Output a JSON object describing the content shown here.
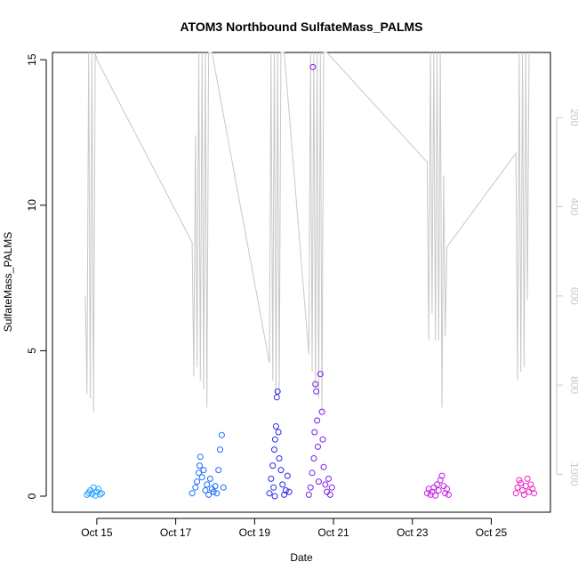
{
  "chart_data": {
    "type": "scatter",
    "title": "ATOM3 Northbound SulfateMass_PALMS",
    "xlabel": "Date",
    "ylabel": "SulfateMass_PALMS",
    "xlim": [
      "2017-10-13T21:00",
      "2017-10-26T12:00"
    ],
    "ylim": [
      -0.55,
      15.25
    ],
    "x_ticks": [
      {
        "date": "2017-10-15",
        "label": "Oct 15"
      },
      {
        "date": "2017-10-17",
        "label": "Oct 17"
      },
      {
        "date": "2017-10-19",
        "label": "Oct 19"
      },
      {
        "date": "2017-10-21",
        "label": "Oct 21"
      },
      {
        "date": "2017-10-23",
        "label": "Oct 23"
      },
      {
        "date": "2017-10-25",
        "label": "Oct 25"
      }
    ],
    "y_ticks": [
      0,
      5,
      10,
      15
    ],
    "y2_ticks": [
      200,
      400,
      600,
      800,
      1000
    ],
    "y2lim": [
      54,
      1085
    ],
    "y2_inverted": true,
    "grid": false,
    "legend": "none",
    "series": [
      {
        "color": "#1ea0ff",
        "points": [
          [
            "2017-10-14T18:00",
            0.05
          ],
          [
            "2017-10-14T19:00",
            0.12
          ],
          [
            "2017-10-14T20:00",
            0.2
          ],
          [
            "2017-10-14T21:00",
            0.08
          ],
          [
            "2017-10-14T22:00",
            0.3
          ],
          [
            "2017-10-14T23:00",
            0.02
          ],
          [
            "2017-10-15T00:00",
            0.15
          ],
          [
            "2017-10-15T01:00",
            0.25
          ],
          [
            "2017-10-15T02:00",
            0.06
          ],
          [
            "2017-10-15T03:00",
            0.1
          ]
        ]
      },
      {
        "color": "#1a6bff",
        "points": [
          [
            "2017-10-17T10:00",
            0.1
          ],
          [
            "2017-10-17T12:00",
            0.3
          ],
          [
            "2017-10-17T13:00",
            0.5
          ],
          [
            "2017-10-17T14:00",
            0.8
          ],
          [
            "2017-10-17T14:30",
            1.05
          ],
          [
            "2017-10-17T15:00",
            1.35
          ],
          [
            "2017-10-17T16:00",
            0.65
          ],
          [
            "2017-10-17T17:00",
            0.9
          ],
          [
            "2017-10-17T18:00",
            0.2
          ],
          [
            "2017-10-17T19:00",
            0.4
          ],
          [
            "2017-10-17T20:00",
            0.05
          ],
          [
            "2017-10-17T21:00",
            0.6
          ],
          [
            "2017-10-17T22:00",
            0.25
          ],
          [
            "2017-10-17T23:00",
            0.15
          ],
          [
            "2017-10-18T00:00",
            0.35
          ],
          [
            "2017-10-18T01:00",
            0.1
          ],
          [
            "2017-10-18T02:00",
            0.9
          ],
          [
            "2017-10-18T03:00",
            1.6
          ],
          [
            "2017-10-18T04:00",
            2.1
          ],
          [
            "2017-10-18T05:00",
            0.3
          ]
        ]
      },
      {
        "color": "#2a28e8",
        "points": [
          [
            "2017-10-19T09:00",
            0.1
          ],
          [
            "2017-10-19T10:00",
            0.6
          ],
          [
            "2017-10-19T11:00",
            1.05
          ],
          [
            "2017-10-19T12:00",
            1.6
          ],
          [
            "2017-10-19T12:30",
            1.95
          ],
          [
            "2017-10-19T13:00",
            2.4
          ],
          [
            "2017-10-19T13:30",
            3.4
          ],
          [
            "2017-10-19T14:00",
            3.6
          ],
          [
            "2017-10-19T14:30",
            2.2
          ],
          [
            "2017-10-19T15:00",
            1.3
          ],
          [
            "2017-10-19T16:00",
            0.9
          ],
          [
            "2017-10-19T17:00",
            0.4
          ],
          [
            "2017-10-19T18:00",
            0.05
          ],
          [
            "2017-10-19T19:00",
            0.2
          ],
          [
            "2017-10-19T20:00",
            0.7
          ],
          [
            "2017-10-19T21:00",
            0.15
          ],
          [
            "2017-10-19T11:30",
            0.3
          ],
          [
            "2017-10-19T12:15",
            0.0
          ]
        ]
      },
      {
        "color": "#7a1ee8",
        "points": [
          [
            "2017-10-20T09:00",
            0.05
          ],
          [
            "2017-10-20T10:00",
            0.3
          ],
          [
            "2017-10-20T11:00",
            0.8
          ],
          [
            "2017-10-20T11:30",
            14.75
          ],
          [
            "2017-10-20T12:00",
            1.3
          ],
          [
            "2017-10-20T12:30",
            2.2
          ],
          [
            "2017-10-20T13:00",
            3.85
          ],
          [
            "2017-10-20T13:30",
            3.6
          ],
          [
            "2017-10-20T14:00",
            2.6
          ],
          [
            "2017-10-20T14:30",
            1.7
          ],
          [
            "2017-10-20T15:00",
            0.5
          ],
          [
            "2017-10-20T16:00",
            4.2
          ],
          [
            "2017-10-20T17:00",
            2.9
          ],
          [
            "2017-10-20T17:30",
            1.95
          ],
          [
            "2017-10-20T18:00",
            1.0
          ],
          [
            "2017-10-20T19:00",
            0.4
          ],
          [
            "2017-10-20T20:00",
            0.15
          ],
          [
            "2017-10-20T21:00",
            0.6
          ],
          [
            "2017-10-20T22:00",
            0.05
          ],
          [
            "2017-10-20T23:00",
            0.3
          ]
        ]
      },
      {
        "color": "#c41ee8",
        "points": [
          [
            "2017-10-23T09:00",
            0.1
          ],
          [
            "2017-10-23T10:00",
            0.25
          ],
          [
            "2017-10-23T11:00",
            0.05
          ],
          [
            "2017-10-23T12:00",
            0.15
          ],
          [
            "2017-10-23T13:00",
            0.3
          ],
          [
            "2017-10-23T14:00",
            0.02
          ],
          [
            "2017-10-23T15:00",
            0.4
          ],
          [
            "2017-10-23T16:00",
            0.2
          ],
          [
            "2017-10-23T17:00",
            0.55
          ],
          [
            "2017-10-23T18:00",
            0.7
          ],
          [
            "2017-10-23T19:00",
            0.35
          ],
          [
            "2017-10-23T20:00",
            0.1
          ],
          [
            "2017-10-23T21:00",
            0.25
          ],
          [
            "2017-10-23T22:00",
            0.05
          ]
        ]
      },
      {
        "color": "#f01ec8",
        "points": [
          [
            "2017-10-25T15:00",
            0.1
          ],
          [
            "2017-10-25T16:00",
            0.3
          ],
          [
            "2017-10-25T17:00",
            0.55
          ],
          [
            "2017-10-25T18:00",
            0.45
          ],
          [
            "2017-10-25T19:00",
            0.2
          ],
          [
            "2017-10-25T20:00",
            0.05
          ],
          [
            "2017-10-25T21:00",
            0.35
          ],
          [
            "2017-10-25T22:00",
            0.6
          ],
          [
            "2017-10-25T23:00",
            0.15
          ],
          [
            "2017-10-26T00:00",
            0.4
          ],
          [
            "2017-10-26T01:00",
            0.25
          ],
          [
            "2017-10-26T02:00",
            0.1
          ]
        ]
      }
    ],
    "secondary_line": {
      "color": "#c8c8c8",
      "axis": "right",
      "points": [
        [
          "2017-10-14T17:00",
          600
        ],
        [
          "2017-10-14T18:00",
          820
        ],
        [
          "2017-10-14T19:00",
          54
        ],
        [
          "2017-10-14T20:00",
          830
        ],
        [
          "2017-10-14T21:00",
          54
        ],
        [
          "2017-10-14T22:00",
          860
        ],
        [
          "2017-10-14T23:00",
          54
        ],
        [
          "2017-10-15T00:00",
          70
        ],
        [
          "2017-10-17T10:00",
          480
        ],
        [
          "2017-10-17T11:00",
          780
        ],
        [
          "2017-10-17T12:00",
          240
        ],
        [
          "2017-10-17T13:00",
          760
        ],
        [
          "2017-10-17T14:00",
          54
        ],
        [
          "2017-10-17T15:00",
          790
        ],
        [
          "2017-10-17T16:00",
          54
        ],
        [
          "2017-10-17T17:00",
          810
        ],
        [
          "2017-10-17T18:00",
          54
        ],
        [
          "2017-10-17T19:00",
          850
        ],
        [
          "2017-10-17T20:00",
          54
        ],
        [
          "2017-10-17T22:00",
          54
        ],
        [
          "2017-10-19T09:00",
          750
        ],
        [
          "2017-10-19T10:00",
          54
        ],
        [
          "2017-10-19T11:00",
          790
        ],
        [
          "2017-10-19T12:00",
          54
        ],
        [
          "2017-10-19T13:00",
          820
        ],
        [
          "2017-10-19T14:00",
          54
        ],
        [
          "2017-10-19T15:00",
          820
        ],
        [
          "2017-10-19T16:00",
          54
        ],
        [
          "2017-10-19T18:00",
          54
        ],
        [
          "2017-10-20T09:00",
          730
        ],
        [
          "2017-10-20T10:00",
          54
        ],
        [
          "2017-10-20T11:00",
          770
        ],
        [
          "2017-10-20T12:00",
          54
        ],
        [
          "2017-10-20T13:00",
          810
        ],
        [
          "2017-10-20T14:00",
          54
        ],
        [
          "2017-10-20T15:00",
          830
        ],
        [
          "2017-10-20T16:00",
          54
        ],
        [
          "2017-10-20T17:00",
          860
        ],
        [
          "2017-10-20T18:00",
          54
        ],
        [
          "2017-10-20T20:00",
          54
        ],
        [
          "2017-10-23T09:00",
          300
        ],
        [
          "2017-10-23T10:00",
          700
        ],
        [
          "2017-10-23T11:00",
          54
        ],
        [
          "2017-10-23T12:00",
          640
        ],
        [
          "2017-10-23T13:00",
          54
        ],
        [
          "2017-10-23T14:00",
          700
        ],
        [
          "2017-10-23T15:00",
          54
        ],
        [
          "2017-10-23T16:00",
          700
        ],
        [
          "2017-10-23T17:00",
          54
        ],
        [
          "2017-10-23T18:00",
          850
        ],
        [
          "2017-10-23T19:00",
          330
        ],
        [
          "2017-10-23T20:00",
          690
        ],
        [
          "2017-10-23T21:00",
          490
        ],
        [
          "2017-10-25T15:00",
          280
        ],
        [
          "2017-10-25T16:00",
          790
        ],
        [
          "2017-10-25T17:00",
          54
        ],
        [
          "2017-10-25T18:00",
          770
        ],
        [
          "2017-10-25T19:00",
          54
        ],
        [
          "2017-10-25T20:00",
          760
        ],
        [
          "2017-10-25T21:00",
          54
        ],
        [
          "2017-10-25T22:00",
          610
        ],
        [
          "2017-10-25T23:00",
          54
        ]
      ]
    }
  }
}
